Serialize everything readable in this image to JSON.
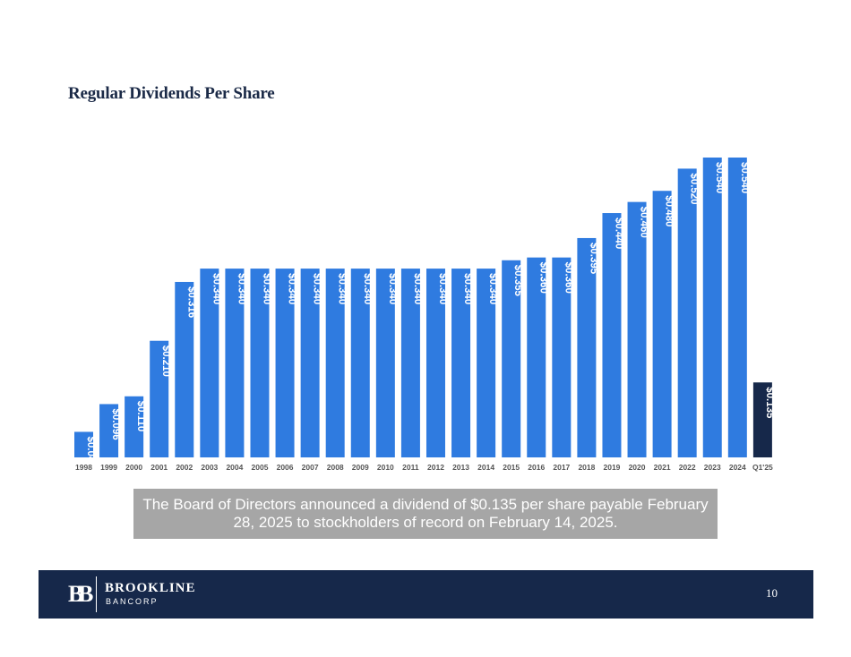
{
  "title": "Regular Dividends Per Share",
  "chart_data": {
    "type": "bar",
    "categories": [
      "1998",
      "1999",
      "2000",
      "2001",
      "2002",
      "2003",
      "2004",
      "2005",
      "2006",
      "2007",
      "2008",
      "2009",
      "2010",
      "2011",
      "2012",
      "2013",
      "2014",
      "2015",
      "2016",
      "2017",
      "2018",
      "2019",
      "2020",
      "2021",
      "2022",
      "2023",
      "2024",
      "Q1'25"
    ],
    "values": [
      0.046,
      0.096,
      0.11,
      0.21,
      0.316,
      0.34,
      0.34,
      0.34,
      0.34,
      0.34,
      0.34,
      0.34,
      0.34,
      0.34,
      0.34,
      0.34,
      0.34,
      0.355,
      0.36,
      0.36,
      0.395,
      0.44,
      0.46,
      0.48,
      0.52,
      0.54,
      0.54,
      0.135
    ],
    "data_labels": [
      "$0.046",
      "$0.096",
      "$0.110",
      "$0.210",
      "$0.316",
      "$0.340",
      "$0.340",
      "$0.340",
      "$0.340",
      "$0.340",
      "$0.340",
      "$0.340",
      "$0.340",
      "$0.340",
      "$0.340",
      "$0.340",
      "$0.340",
      "$0.355",
      "$0.360",
      "$0.360",
      "$0.395",
      "$0.440",
      "$0.460",
      "$0.480",
      "$0.520",
      "$0.540",
      "$0.540",
      "$0.135"
    ],
    "ylim": [
      0,
      0.54
    ],
    "colors": {
      "bar": "#2f7be0",
      "highlight": "#16284a"
    },
    "highlight_index": 27,
    "grid": false,
    "legend": "none"
  },
  "callout": "The Board of Directors announced a dividend of $0.135 per share payable February 28, 2025 to stockholders of record on February 14, 2025.",
  "footer": {
    "company_name": "BROOKLINE",
    "company_sub": "BANCORP",
    "page_number": "10"
  }
}
